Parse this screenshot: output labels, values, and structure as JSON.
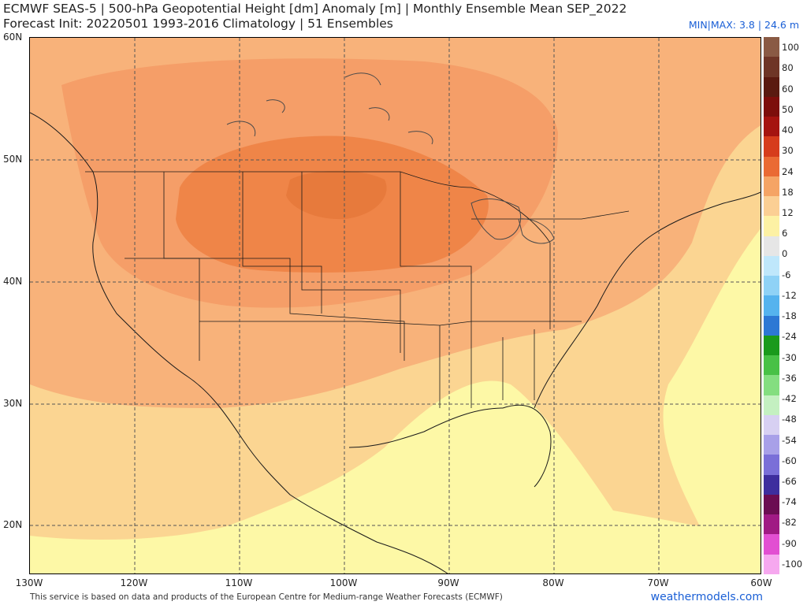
{
  "header": {
    "title_line1": "ECMWF SEAS-5 | 500-hPa Geopotential Height [dm] Anomaly [m] | Monthly Ensemble Mean SEP_2022",
    "title_line2": "Forecast Init: 20220501     1993-2016 Climatology | 51 Ensembles",
    "minmax": "MIN|MAX: 3.8 | 24.6 m"
  },
  "axes": {
    "lat_labels": [
      "60N",
      "50N",
      "40N",
      "30N",
      "20N"
    ],
    "lon_labels": [
      "130W",
      "120W",
      "110W",
      "100W",
      "90W",
      "80W",
      "70W",
      "60W"
    ]
  },
  "legend": {
    "labels": [
      "100",
      "80",
      "60",
      "50",
      "40",
      "30",
      "24",
      "18",
      "12",
      "6",
      "0",
      "-6",
      "-12",
      "-18",
      "-24",
      "-30",
      "-36",
      "-42",
      "-48",
      "-54",
      "-60",
      "-66",
      "-74",
      "-82",
      "-90",
      "-100"
    ],
    "colors": [
      "#8a5a44",
      "#6e3526",
      "#5a1a10",
      "#7d0e0b",
      "#a51410",
      "#d63c1c",
      "#ea6a34",
      "#f5a465",
      "#fbcf94",
      "#fdf1a4",
      "#e6e6e6",
      "#bfe7fb",
      "#8fd2f6",
      "#55b3ee",
      "#2d78d4",
      "#1a9a1c",
      "#48c146",
      "#84de80",
      "#c4f0c1",
      "#d7d0f2",
      "#a8a0e8",
      "#7a6fd8",
      "#3e2e9e",
      "#6b0d52",
      "#a01a84",
      "#e24fd2",
      "#f6a8ef"
    ]
  },
  "map": {
    "colors": {
      "level_6": "#fdf8a6",
      "level_12": "#fbd592",
      "level_18": "#f8b27a",
      "level_18b": "#f59e68",
      "level_24": "#ef8548",
      "border": "#1a1a1a",
      "water_lines": "#4a4a4a",
      "grid": "#555555"
    }
  },
  "footer": {
    "note": "This service is based on data and products of the European Centre for Medium-range Weather Forecasts (ECMWF)",
    "brand": "weathermodels.com"
  }
}
